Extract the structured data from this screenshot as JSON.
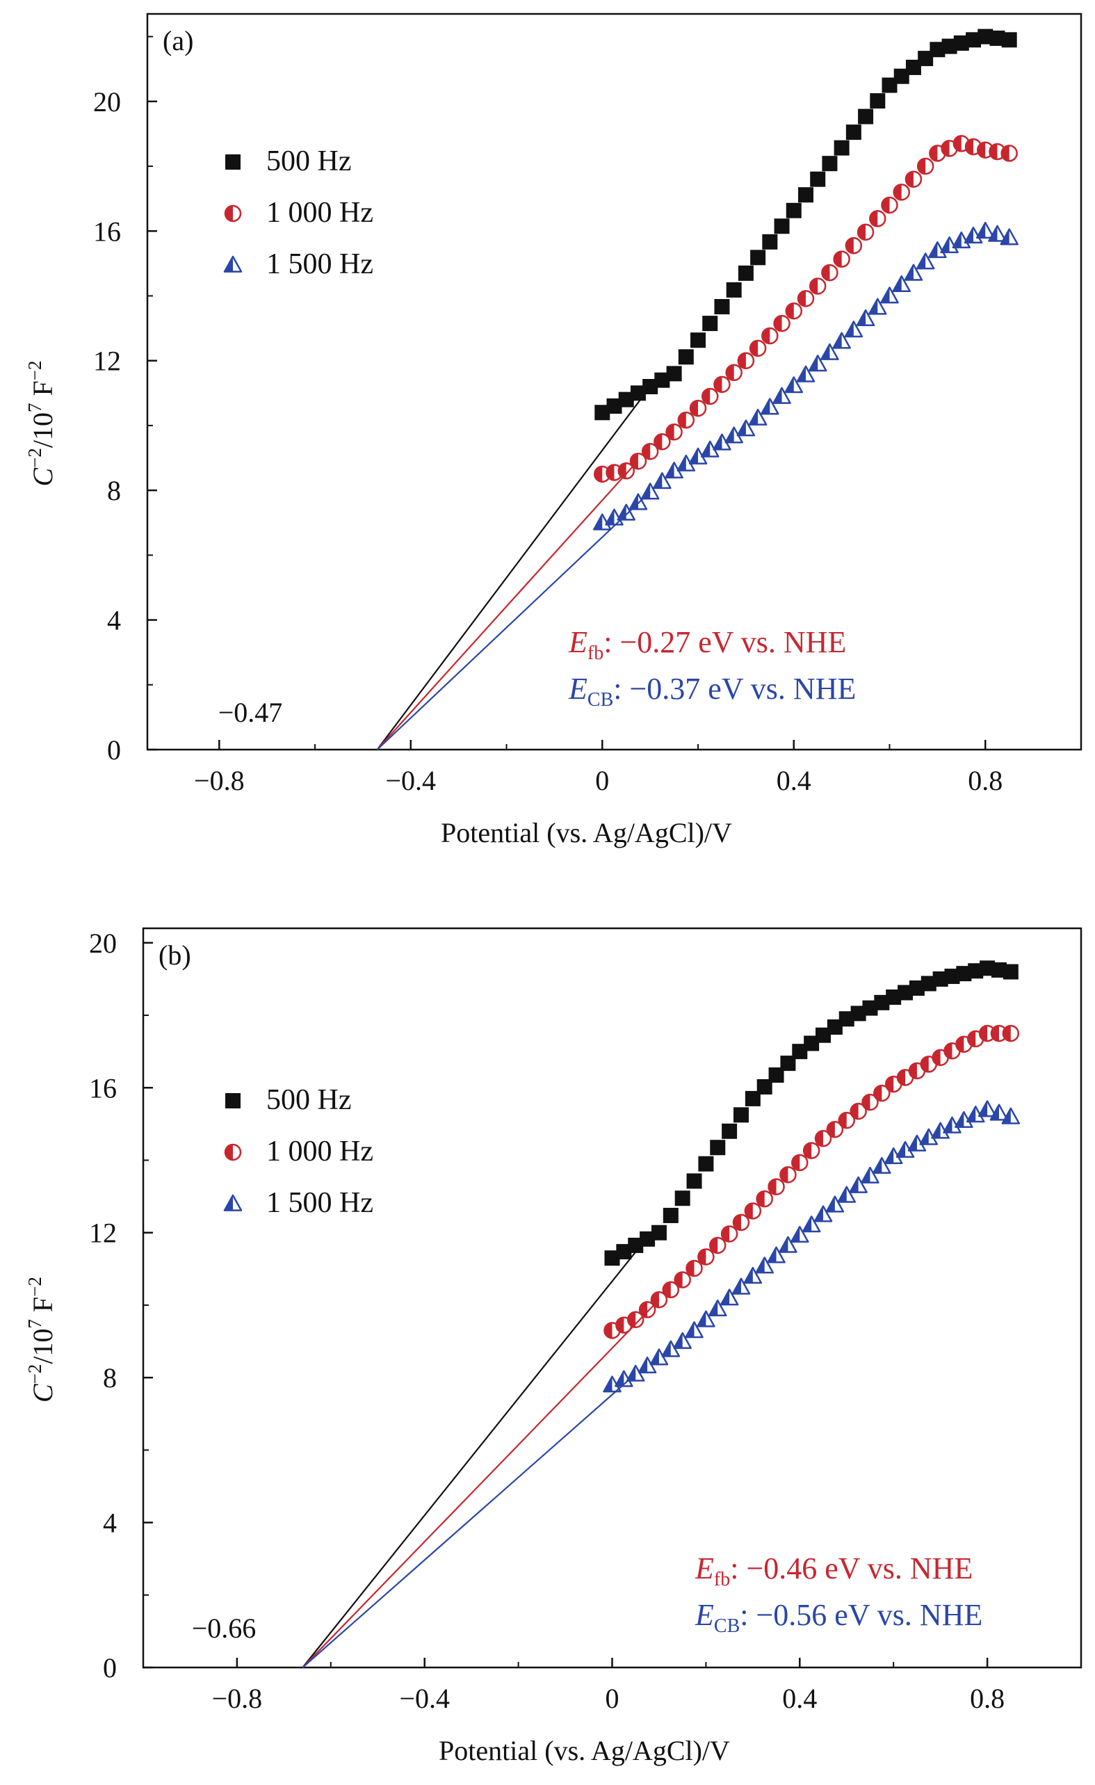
{
  "chart_data": [
    {
      "type": "scatter",
      "panel_label": "(a)",
      "xlabel": "Potential (vs. Ag/AgCl)/V",
      "ylabel": {
        "base": "C",
        "sup1": "−2",
        "mid": "/10",
        "sup2": "7",
        "unit": " F",
        "sup3": "−2"
      },
      "xlim": [
        -0.95,
        1.0
      ],
      "ylim": [
        0,
        22.7
      ],
      "xticks": [
        -0.8,
        -0.4,
        0,
        0.4,
        0.8
      ],
      "xtick_labels": [
        "−0.8",
        "−0.4",
        "0",
        "0.4",
        "0.8"
      ],
      "yticks": [
        0,
        4,
        8,
        12,
        16,
        20
      ],
      "ytick_labels": [
        "0",
        "4",
        "8",
        "12",
        "16",
        "20"
      ],
      "legend_position": "upper-left",
      "series": [
        {
          "name": "500 Hz",
          "marker": "square",
          "color": "#111111",
          "x": [
            0.0,
            0.15,
            0.3,
            0.45,
            0.6,
            0.7,
            0.8,
            0.85
          ],
          "y": [
            10.4,
            11.6,
            14.7,
            17.6,
            20.5,
            21.6,
            22.0,
            21.9
          ],
          "fit": {
            "x0": -0.47,
            "x1": 0.1
          }
        },
        {
          "name": "1 000 Hz",
          "marker": "half-circle",
          "color": "#c8262e",
          "x": [
            0.0,
            0.05,
            0.15,
            0.3,
            0.45,
            0.6,
            0.7,
            0.75,
            0.8,
            0.85
          ],
          "y": [
            8.5,
            8.6,
            9.8,
            12.0,
            14.3,
            16.8,
            18.4,
            18.7,
            18.5,
            18.4
          ],
          "fit": {
            "x0": -0.47,
            "x1": 0.07
          }
        },
        {
          "name": "1 500 Hz",
          "marker": "half-triangle",
          "color": "#2a46a8",
          "x": [
            0.0,
            0.05,
            0.15,
            0.3,
            0.45,
            0.6,
            0.7,
            0.8,
            0.85
          ],
          "y": [
            7.0,
            7.3,
            8.6,
            9.9,
            11.9,
            14.0,
            15.4,
            16.0,
            15.8
          ],
          "fit": {
            "x0": -0.47,
            "x1": 0.1
          }
        }
      ],
      "annotations": {
        "efb": {
          "var": "E",
          "sub": "fb",
          "text": ": −0.27 eV vs. NHE"
        },
        "ecb": {
          "var": "E",
          "sub": "CB",
          "text": ": −0.37 eV vs. NHE"
        },
        "intercept": "−0.47"
      }
    },
    {
      "type": "scatter",
      "panel_label": "(b)",
      "xlabel": "Potential (vs. Ag/AgCl)/V",
      "ylabel": {
        "base": "C",
        "sup1": "−2",
        "mid": "/10",
        "sup2": "7",
        "unit": " F",
        "sup3": "−2"
      },
      "xlim": [
        -1.0,
        1.0
      ],
      "ylim": [
        0,
        20.4
      ],
      "xticks": [
        -0.8,
        -0.4,
        0,
        0.4,
        0.8
      ],
      "xtick_labels": [
        "−0.8",
        "−0.4",
        "0",
        "0.4",
        "0.8"
      ],
      "yticks": [
        0,
        4,
        8,
        12,
        16,
        20
      ],
      "ytick_labels": [
        "0",
        "4",
        "8",
        "12",
        "16",
        "20"
      ],
      "legend_position": "upper-left",
      "series": [
        {
          "name": "500 Hz",
          "marker": "square",
          "color": "#111111",
          "x": [
            0.0,
            0.1,
            0.2,
            0.3,
            0.4,
            0.5,
            0.6,
            0.7,
            0.8,
            0.85
          ],
          "y": [
            11.3,
            12.0,
            13.9,
            15.7,
            17.0,
            17.9,
            18.5,
            19.0,
            19.3,
            19.2
          ],
          "fit": {
            "x0": -0.66,
            "x1": 0.07
          }
        },
        {
          "name": "1 000 Hz",
          "marker": "half-circle",
          "color": "#c8262e",
          "x": [
            0.0,
            0.05,
            0.15,
            0.3,
            0.45,
            0.6,
            0.75,
            0.8,
            0.85
          ],
          "y": [
            9.3,
            9.6,
            10.7,
            12.6,
            14.6,
            16.1,
            17.2,
            17.5,
            17.5
          ],
          "fit": {
            "x0": -0.66,
            "x1": 0.1
          }
        },
        {
          "name": "1 500 Hz",
          "marker": "half-triangle",
          "color": "#2a46a8",
          "x": [
            0.0,
            0.05,
            0.15,
            0.3,
            0.45,
            0.6,
            0.7,
            0.8,
            0.85
          ],
          "y": [
            7.8,
            8.1,
            9.0,
            10.8,
            12.5,
            14.1,
            14.8,
            15.4,
            15.2
          ],
          "fit": {
            "x0": -0.66,
            "x1": 0.05
          }
        }
      ],
      "annotations": {
        "efb": {
          "var": "E",
          "sub": "fb",
          "text": ": −0.46 eV vs. NHE"
        },
        "ecb": {
          "var": "E",
          "sub": "CB",
          "text": ": −0.56 eV vs. NHE"
        },
        "intercept": "−0.66"
      }
    }
  ]
}
